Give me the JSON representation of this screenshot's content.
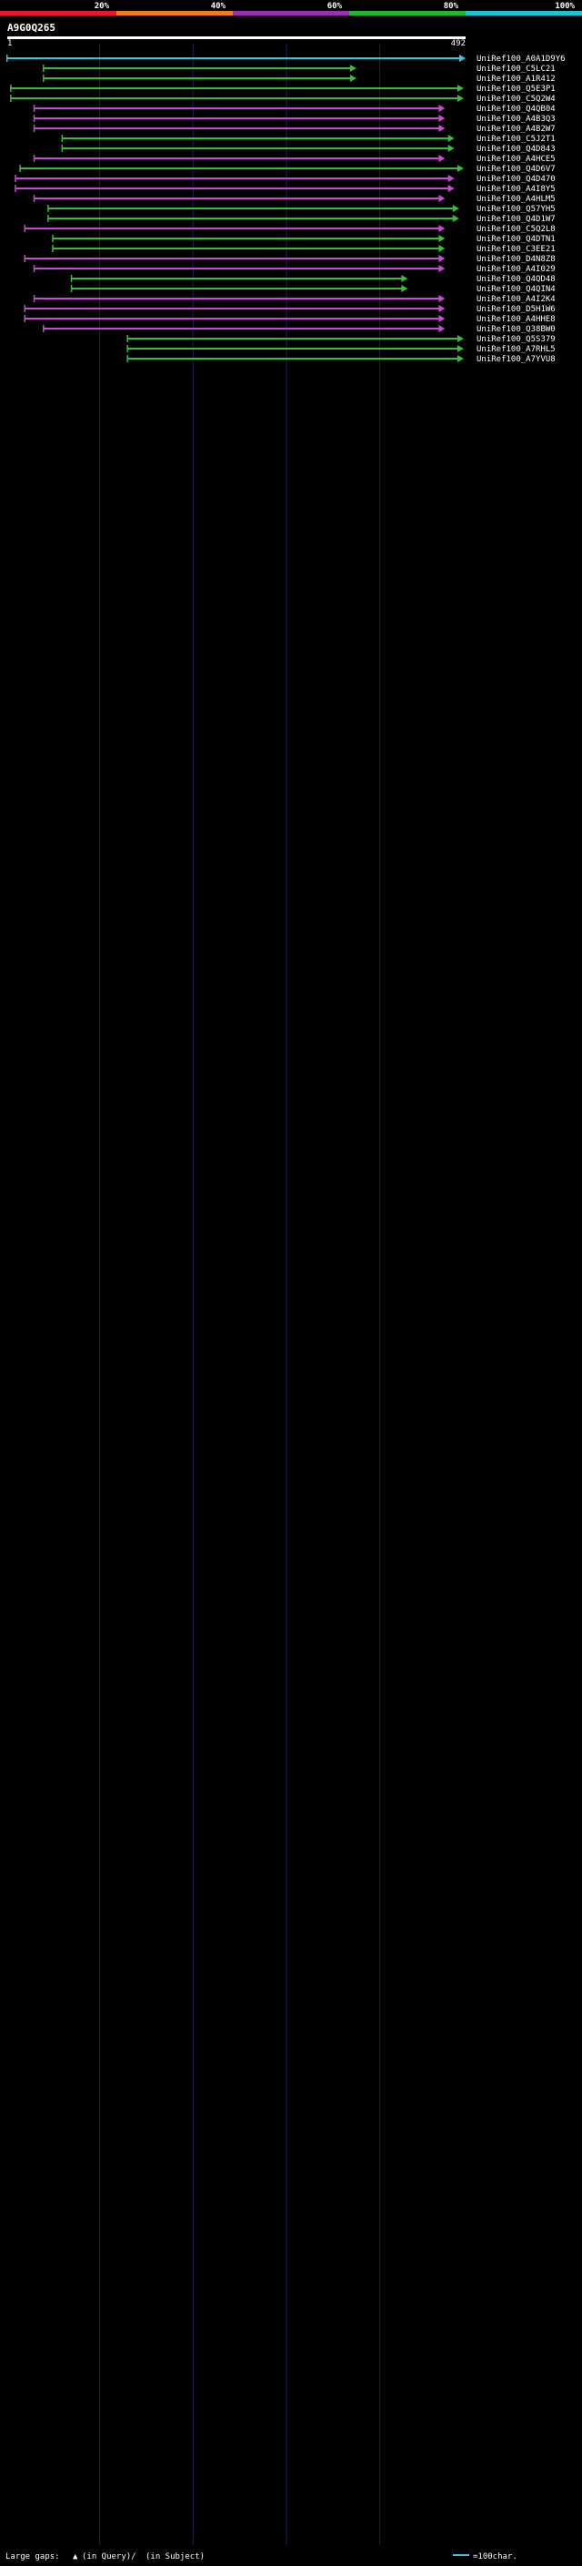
{
  "chart_data": {
    "type": "alignment-overview",
    "title": "A9G0Q265",
    "query_start": "1",
    "query_end": "492",
    "query_length": 492,
    "color_scale": {
      "labels": [
        "20%",
        "40%",
        "60%",
        "80%",
        "100%"
      ],
      "colors": [
        "#e8162a",
        "#ef7d1c",
        "#9a2fb2",
        "#25b42a",
        "#1cc2d8"
      ]
    },
    "series_colors": {
      "purple": "#c64bcf",
      "green": "#3cbb3a",
      "cyan": "#33c8dd",
      "query": "#ffffff"
    },
    "legend": {
      "large_gaps": "Large gaps:",
      "in_query": "(in Query)/",
      "in_subject": "(in Subject)",
      "scale": "=100char."
    },
    "hits_top": [
      {
        "id": "UniRef100_A0A1D9Y6",
        "start": 1,
        "end": 492,
        "color": "cyan"
      },
      {
        "id": "UniRef100_C5LC21",
        "start": 40,
        "end": 375,
        "color": "green"
      },
      {
        "id": "UniRef100_A1R412",
        "start": 40,
        "end": 375,
        "color": "green"
      },
      {
        "id": "UniRef100_Q5E3P1",
        "start": 5,
        "end": 490,
        "color": "green"
      },
      {
        "id": "UniRef100_C5Q2W4",
        "start": 5,
        "end": 490,
        "color": "green"
      },
      {
        "id": "UniRef100_Q4QB04",
        "start": 30,
        "end": 470,
        "color": "purple"
      },
      {
        "id": "UniRef100_A4B3Q3",
        "start": 30,
        "end": 470,
        "color": "purple"
      },
      {
        "id": "UniRef100_A4B2W7",
        "start": 30,
        "end": 470,
        "color": "purple"
      },
      {
        "id": "UniRef100_C5J2T1",
        "start": 60,
        "end": 480,
        "color": "green"
      },
      {
        "id": "UniRef100_Q4D843",
        "start": 60,
        "end": 480,
        "color": "green"
      },
      {
        "id": "UniRef100_A4HCE5",
        "start": 30,
        "end": 470,
        "color": "purple"
      },
      {
        "id": "UniRef100_Q4D6V7",
        "start": 15,
        "end": 490,
        "color": "green"
      },
      {
        "id": "UniRef100_Q4D470",
        "start": 10,
        "end": 480,
        "color": "purple"
      },
      {
        "id": "UniRef100_A4I8Y5",
        "start": 10,
        "end": 480,
        "color": "purple"
      },
      {
        "id": "UniRef100_A4HLM5",
        "start": 30,
        "end": 470,
        "color": "purple"
      },
      {
        "id": "UniRef100_Q57YH5",
        "start": 45,
        "end": 485,
        "color": "green"
      },
      {
        "id": "UniRef100_Q4D1W7",
        "start": 45,
        "end": 485,
        "color": "green"
      },
      {
        "id": "UniRef100_C5Q2L8",
        "start": 20,
        "end": 470,
        "color": "purple"
      },
      {
        "id": "UniRef100_Q4DTN1",
        "start": 50,
        "end": 470,
        "color": "green"
      },
      {
        "id": "UniRef100_C3EE21",
        "start": 50,
        "end": 470,
        "color": "green"
      },
      {
        "id": "UniRef100_D4N8Z8",
        "start": 20,
        "end": 470,
        "color": "purple"
      },
      {
        "id": "UniRef100_A4I029",
        "start": 30,
        "end": 470,
        "color": "purple"
      },
      {
        "id": "UniRef100_Q4QD48",
        "start": 70,
        "end": 430,
        "color": "green"
      },
      {
        "id": "UniRef100_Q4QIN4",
        "start": 70,
        "end": 430,
        "color": "green"
      },
      {
        "id": "UniRef100_A4I2K4",
        "start": 30,
        "end": 470,
        "color": "purple"
      },
      {
        "id": "UniRef100_D5H1W6",
        "start": 20,
        "end": 470,
        "color": "purple"
      },
      {
        "id": "UniRef100_A4HHE8",
        "start": 20,
        "end": 470,
        "color": "purple"
      },
      {
        "id": "UniRef100_Q38BW0",
        "start": 40,
        "end": 470,
        "color": "purple"
      },
      {
        "id": "UniRef100_Q5S379",
        "start": 130,
        "end": 490,
        "color": "green"
      },
      {
        "id": "UniRef100_A7RHL5",
        "start": 130,
        "end": 490,
        "color": "green"
      },
      {
        "id": "UniRef100_A7YVU8",
        "start": 130,
        "end": 490,
        "color": "green"
      }
    ]
  }
}
